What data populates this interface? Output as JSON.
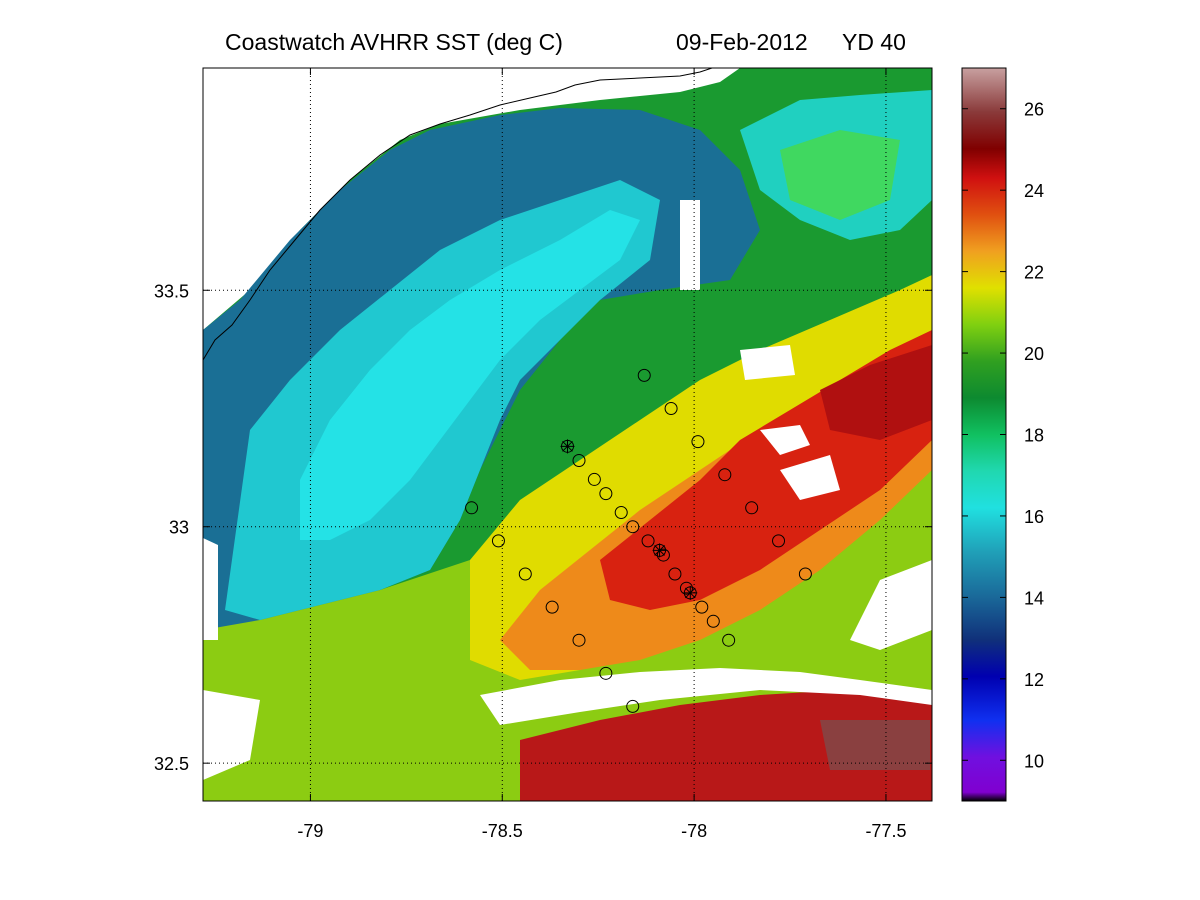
{
  "chart_data": {
    "type": "heatmap",
    "title_left": "Coastwatch   AVHRR   SST  (deg C)",
    "title_date": "09-Feb-2012",
    "title_yd": "YD 40",
    "xlim": [
      -79.28,
      -77.38
    ],
    "ylim": [
      32.42,
      33.97
    ],
    "x_ticks": [
      -79,
      -78.5,
      -78,
      -77.5
    ],
    "x_tick_labels": [
      "-79",
      "-78.5",
      "-78",
      "-77.5"
    ],
    "y_ticks": [
      32.5,
      33,
      33.5
    ],
    "y_tick_labels": [
      "32.5",
      "33",
      "33.5"
    ],
    "grid": "dotted",
    "colorbar": {
      "range": [
        9,
        27
      ],
      "ticks": [
        10,
        12,
        14,
        16,
        18,
        20,
        22,
        24,
        26
      ],
      "tick_labels": [
        "10",
        "12",
        "14",
        "16",
        "18",
        "20",
        "22",
        "24",
        "26"
      ]
    },
    "stations": [
      {
        "lon": -78.13,
        "lat": 33.32
      },
      {
        "lon": -78.06,
        "lat": 33.25
      },
      {
        "lon": -77.99,
        "lat": 33.18
      },
      {
        "lon": -77.92,
        "lat": 33.11
      },
      {
        "lon": -77.85,
        "lat": 33.04
      },
      {
        "lon": -77.78,
        "lat": 32.97
      },
      {
        "lon": -77.71,
        "lat": 32.9
      },
      {
        "lon": -78.58,
        "lat": 33.04
      },
      {
        "lon": -78.51,
        "lat": 32.97
      },
      {
        "lon": -78.44,
        "lat": 32.9
      },
      {
        "lon": -78.37,
        "lat": 32.83
      },
      {
        "lon": -78.3,
        "lat": 32.76
      },
      {
        "lon": -78.23,
        "lat": 32.69
      },
      {
        "lon": -78.16,
        "lat": 32.62
      },
      {
        "lon": -78.33,
        "lat": 33.17,
        "star": true
      },
      {
        "lon": -78.3,
        "lat": 33.14
      },
      {
        "lon": -78.26,
        "lat": 33.1
      },
      {
        "lon": -78.23,
        "lat": 33.07
      },
      {
        "lon": -78.19,
        "lat": 33.03
      },
      {
        "lon": -78.16,
        "lat": 33.0
      },
      {
        "lon": -78.12,
        "lat": 32.97
      },
      {
        "lon": -78.09,
        "lat": 32.95,
        "star": true
      },
      {
        "lon": -78.08,
        "lat": 32.94
      },
      {
        "lon": -78.05,
        "lat": 32.9
      },
      {
        "lon": -78.02,
        "lat": 32.87
      },
      {
        "lon": -78.01,
        "lat": 32.86,
        "star": true
      },
      {
        "lon": -77.98,
        "lat": 32.83
      },
      {
        "lon": -77.95,
        "lat": 32.8
      },
      {
        "lon": -77.91,
        "lat": 32.76
      }
    ]
  }
}
